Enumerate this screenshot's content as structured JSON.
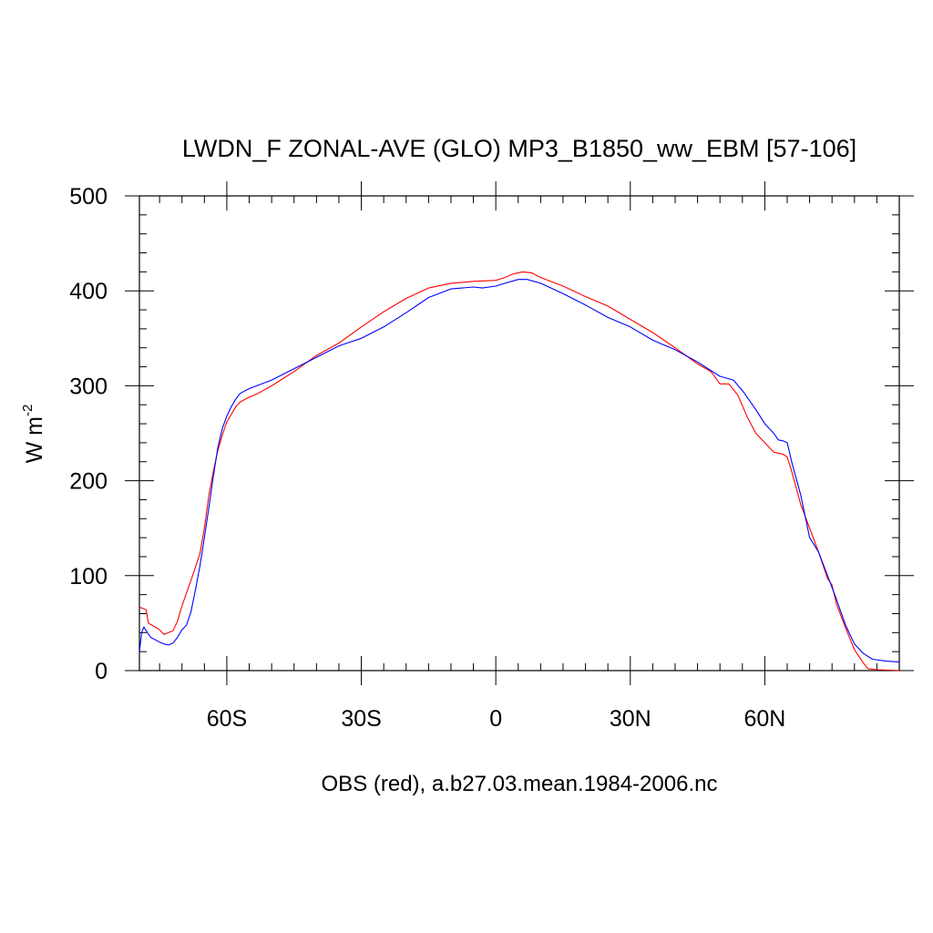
{
  "chart_data": {
    "type": "line",
    "title": "LWDN_F ZONAL-AVE (GLO) MP3_B1850_ww_EBM [57-106]",
    "xlabel": "OBS (red), a.b27.03.mean.1984-2006.nc",
    "ylabel": {
      "base": "W m",
      "sup": "-2"
    },
    "xlim": [
      -79.5,
      90
    ],
    "ylim": [
      0,
      500
    ],
    "xticks": [
      {
        "value": -60,
        "label": "60S"
      },
      {
        "value": -30,
        "label": "30S"
      },
      {
        "value": 0,
        "label": "0"
      },
      {
        "value": 30,
        "label": "30N"
      },
      {
        "value": 60,
        "label": "60N"
      }
    ],
    "yticks": [
      {
        "value": 0,
        "label": "0"
      },
      {
        "value": 100,
        "label": "100"
      },
      {
        "value": 200,
        "label": "200"
      },
      {
        "value": 300,
        "label": "300"
      },
      {
        "value": 400,
        "label": "400"
      },
      {
        "value": 500,
        "label": "500"
      }
    ],
    "series": [
      {
        "color": "#ff0000",
        "points": [
          [
            -79.5,
            67
          ],
          [
            -78,
            64
          ],
          [
            -77.5,
            50
          ],
          [
            -76,
            46
          ],
          [
            -75,
            43
          ],
          [
            -74,
            38
          ],
          [
            -73,
            40
          ],
          [
            -72,
            42
          ],
          [
            -71,
            52
          ],
          [
            -70,
            68
          ],
          [
            -68,
            95
          ],
          [
            -66,
            123
          ],
          [
            -65,
            150
          ],
          [
            -64,
            185
          ],
          [
            -63,
            210
          ],
          [
            -62,
            232
          ],
          [
            -61,
            248
          ],
          [
            -60,
            262
          ],
          [
            -59,
            270
          ],
          [
            -58,
            278
          ],
          [
            -57,
            283
          ],
          [
            -55,
            288
          ],
          [
            -53,
            292
          ],
          [
            -50,
            300
          ],
          [
            -45,
            315
          ],
          [
            -40,
            332
          ],
          [
            -35,
            345
          ],
          [
            -30,
            362
          ],
          [
            -25,
            378
          ],
          [
            -20,
            392
          ],
          [
            -15,
            403
          ],
          [
            -10,
            408
          ],
          [
            -5,
            410
          ],
          [
            0,
            411
          ],
          [
            2,
            414
          ],
          [
            4,
            418
          ],
          [
            6,
            420
          ],
          [
            8,
            419
          ],
          [
            10,
            414
          ],
          [
            15,
            405
          ],
          [
            20,
            394
          ],
          [
            25,
            384
          ],
          [
            30,
            370
          ],
          [
            35,
            356
          ],
          [
            40,
            340
          ],
          [
            45,
            323
          ],
          [
            48,
            315
          ],
          [
            50,
            302
          ],
          [
            52,
            302
          ],
          [
            54,
            290
          ],
          [
            56,
            268
          ],
          [
            58,
            250
          ],
          [
            60,
            240
          ],
          [
            62,
            230
          ],
          [
            64,
            228
          ],
          [
            65,
            225
          ],
          [
            66,
            210
          ],
          [
            68,
            175
          ],
          [
            70,
            150
          ],
          [
            72,
            125
          ],
          [
            74,
            97
          ],
          [
            75,
            90
          ],
          [
            76,
            70
          ],
          [
            78,
            45
          ],
          [
            80,
            22
          ],
          [
            82,
            8
          ],
          [
            83,
            2
          ],
          [
            85,
            1
          ],
          [
            90,
            0
          ]
        ]
      },
      {
        "color": "#0000ff",
        "points": [
          [
            -79.5,
            20
          ],
          [
            -79,
            40
          ],
          [
            -78.5,
            46
          ],
          [
            -78,
            42
          ],
          [
            -77,
            35
          ],
          [
            -75,
            30
          ],
          [
            -74,
            28
          ],
          [
            -73,
            27
          ],
          [
            -72,
            29
          ],
          [
            -71,
            35
          ],
          [
            -70,
            43
          ],
          [
            -69,
            48
          ],
          [
            -68,
            62
          ],
          [
            -67,
            85
          ],
          [
            -66,
            110
          ],
          [
            -65,
            140
          ],
          [
            -64,
            172
          ],
          [
            -63,
            205
          ],
          [
            -62,
            235
          ],
          [
            -61,
            255
          ],
          [
            -60,
            268
          ],
          [
            -59,
            278
          ],
          [
            -58,
            286
          ],
          [
            -57,
            292
          ],
          [
            -55,
            297
          ],
          [
            -50,
            306
          ],
          [
            -45,
            318
          ],
          [
            -40,
            330
          ],
          [
            -35,
            342
          ],
          [
            -30,
            350
          ],
          [
            -25,
            362
          ],
          [
            -20,
            377
          ],
          [
            -15,
            393
          ],
          [
            -10,
            402
          ],
          [
            -5,
            404
          ],
          [
            -3,
            403
          ],
          [
            0,
            405
          ],
          [
            2,
            408
          ],
          [
            5,
            412
          ],
          [
            7,
            412
          ],
          [
            10,
            408
          ],
          [
            15,
            397
          ],
          [
            20,
            385
          ],
          [
            25,
            372
          ],
          [
            30,
            362
          ],
          [
            35,
            348
          ],
          [
            40,
            338
          ],
          [
            45,
            325
          ],
          [
            50,
            310
          ],
          [
            53,
            306
          ],
          [
            55,
            295
          ],
          [
            58,
            275
          ],
          [
            60,
            260
          ],
          [
            62,
            250
          ],
          [
            63,
            243
          ],
          [
            64,
            242
          ],
          [
            65,
            240
          ],
          [
            66,
            220
          ],
          [
            68,
            185
          ],
          [
            70,
            140
          ],
          [
            72,
            125
          ],
          [
            74,
            100
          ],
          [
            76,
            75
          ],
          [
            78,
            48
          ],
          [
            80,
            28
          ],
          [
            82,
            18
          ],
          [
            84,
            12
          ],
          [
            87,
            10
          ],
          [
            90,
            9
          ]
        ]
      }
    ]
  }
}
